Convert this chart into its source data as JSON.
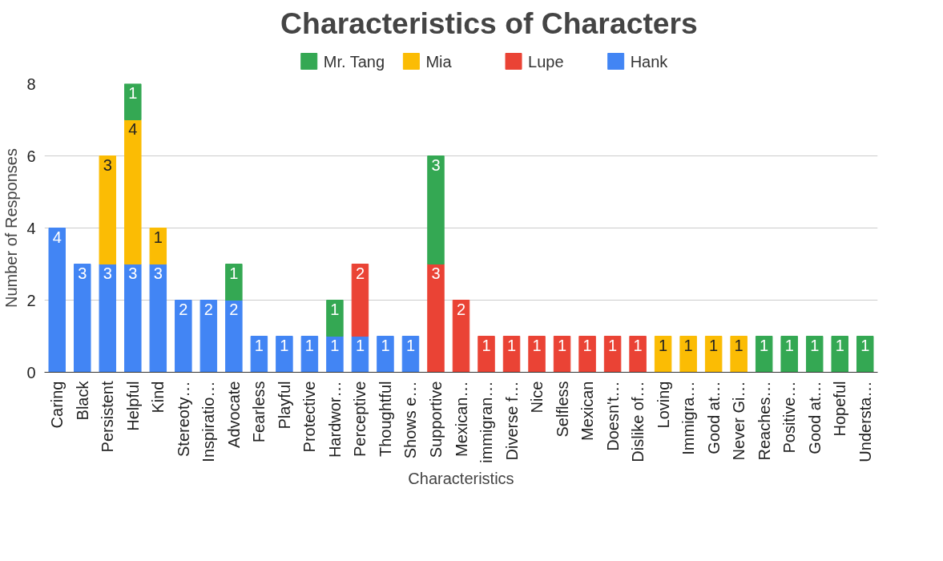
{
  "chart_data": {
    "type": "bar",
    "title": "Characteristics of Characters",
    "xlabel": "Characteristics",
    "ylabel": "Number of Responses",
    "categories": [
      "Caring",
      "Black",
      "Persistent",
      "Helpful",
      "Kind",
      "Stereoty…",
      "Inspiratio…",
      "Advocate",
      "Fearless",
      "Playful",
      "Protective",
      "Hardwor…",
      "Perceptive",
      "Thoughtful",
      "Shows e…",
      "Supportive",
      "Mexican…",
      "immigran…",
      "Diverse f…",
      "Nice",
      "Selfless",
      "Mexican",
      "Doesn't…",
      "Dislike of…",
      "Loving",
      "Immigra…",
      "Good at…",
      "Never Gi…",
      "Reaches…",
      "Positive…",
      "Good at…",
      "Hopeful",
      "Understa…"
    ],
    "series": [
      {
        "name": "Hank",
        "color": "#4285f4",
        "values": [
          4,
          3,
          3,
          3,
          3,
          2,
          2,
          2,
          1,
          1,
          1,
          1,
          1,
          1,
          1,
          null,
          null,
          null,
          null,
          null,
          null,
          null,
          null,
          null,
          null,
          null,
          null,
          null,
          null,
          null,
          null,
          null,
          null
        ]
      },
      {
        "name": "Lupe",
        "color": "#ea4335",
        "values": [
          null,
          null,
          null,
          null,
          null,
          null,
          null,
          null,
          null,
          null,
          null,
          null,
          2,
          null,
          null,
          3,
          2,
          1,
          1,
          1,
          1,
          1,
          1,
          1,
          null,
          null,
          null,
          null,
          null,
          null,
          null,
          null,
          null
        ]
      },
      {
        "name": "Mia",
        "color": "#fbbc04",
        "values": [
          null,
          null,
          3,
          4,
          1,
          null,
          null,
          null,
          null,
          null,
          null,
          null,
          null,
          null,
          null,
          null,
          null,
          null,
          null,
          null,
          null,
          null,
          null,
          null,
          1,
          1,
          1,
          1,
          null,
          null,
          null,
          null,
          null
        ]
      },
      {
        "name": "Mr. Tang",
        "color": "#34a853",
        "values": [
          null,
          null,
          null,
          1,
          null,
          null,
          null,
          1,
          null,
          null,
          null,
          1,
          null,
          null,
          null,
          3,
          null,
          null,
          null,
          null,
          null,
          null,
          null,
          null,
          null,
          null,
          null,
          null,
          1,
          1,
          1,
          1,
          1
        ]
      }
    ],
    "stacked": true,
    "ylim": [
      0,
      8
    ],
    "yticks": [
      0,
      2,
      4,
      6,
      8
    ],
    "grid": "y",
    "legend": "top",
    "data_labels": true
  }
}
